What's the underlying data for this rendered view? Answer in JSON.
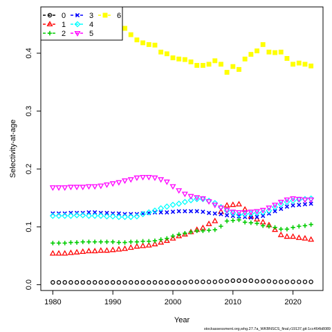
{
  "chart_data": {
    "type": "scatter",
    "xlabel": "Year",
    "ylabel": "Selectivity-at-age",
    "xlim": [
      1978,
      2025
    ],
    "ylim": [
      -0.01,
      0.48
    ],
    "x_ticks": [
      1980,
      1990,
      2000,
      2010,
      2020
    ],
    "y_ticks": [
      0.0,
      0.1,
      0.2,
      0.3,
      0.4
    ],
    "y_tick_labels": [
      "0.0",
      "0.1",
      "0.2",
      "0.3",
      "0.4"
    ],
    "legend_position": "top-left",
    "x": [
      1980,
      1981,
      1982,
      1983,
      1984,
      1985,
      1986,
      1987,
      1988,
      1989,
      1990,
      1991,
      1992,
      1993,
      1994,
      1995,
      1996,
      1997,
      1998,
      1999,
      2000,
      2001,
      2002,
      2003,
      2004,
      2005,
      2006,
      2007,
      2008,
      2009,
      2010,
      2011,
      2012,
      2013,
      2014,
      2015,
      2016,
      2017,
      2018,
      2019,
      2020,
      2021,
      2022,
      2023
    ],
    "series": [
      {
        "name": "0",
        "color": "#000000",
        "marker": "circle",
        "values": [
          0.004,
          0.004,
          0.004,
          0.004,
          0.004,
          0.004,
          0.004,
          0.004,
          0.004,
          0.004,
          0.004,
          0.004,
          0.004,
          0.004,
          0.004,
          0.004,
          0.004,
          0.004,
          0.004,
          0.004,
          0.004,
          0.004,
          0.004,
          0.005,
          0.005,
          0.005,
          0.005,
          0.005,
          0.006,
          0.006,
          0.007,
          0.007,
          0.007,
          0.007,
          0.006,
          0.006,
          0.006,
          0.005,
          0.005,
          0.005,
          0.005,
          0.005,
          0.005,
          0.005
        ]
      },
      {
        "name": "1",
        "color": "#FF0000",
        "marker": "triangle",
        "values": [
          0.054,
          0.054,
          0.054,
          0.055,
          0.056,
          0.057,
          0.058,
          0.058,
          0.059,
          0.059,
          0.06,
          0.061,
          0.062,
          0.064,
          0.066,
          0.067,
          0.068,
          0.07,
          0.073,
          0.076,
          0.08,
          0.084,
          0.087,
          0.091,
          0.095,
          0.098,
          0.105,
          0.11,
          0.126,
          0.137,
          0.138,
          0.139,
          0.13,
          0.118,
          0.113,
          0.108,
          0.103,
          0.095,
          0.086,
          0.083,
          0.083,
          0.081,
          0.08,
          0.078
        ]
      },
      {
        "name": "2",
        "color": "#00CC00",
        "marker": "plus",
        "values": [
          0.072,
          0.072,
          0.072,
          0.073,
          0.073,
          0.074,
          0.074,
          0.074,
          0.074,
          0.074,
          0.074,
          0.073,
          0.073,
          0.074,
          0.074,
          0.075,
          0.075,
          0.076,
          0.078,
          0.08,
          0.084,
          0.087,
          0.089,
          0.091,
          0.093,
          0.093,
          0.094,
          0.095,
          0.101,
          0.11,
          0.111,
          0.112,
          0.108,
          0.107,
          0.106,
          0.102,
          0.101,
          0.099,
          0.096,
          0.096,
          0.099,
          0.101,
          0.102,
          0.104
        ]
      },
      {
        "name": "3",
        "color": "#0000FF",
        "marker": "x",
        "values": [
          0.123,
          0.123,
          0.123,
          0.124,
          0.124,
          0.124,
          0.125,
          0.125,
          0.124,
          0.124,
          0.123,
          0.123,
          0.122,
          0.122,
          0.122,
          0.123,
          0.124,
          0.125,
          0.125,
          0.125,
          0.126,
          0.127,
          0.127,
          0.127,
          0.127,
          0.126,
          0.124,
          0.123,
          0.122,
          0.12,
          0.119,
          0.118,
          0.117,
          0.116,
          0.117,
          0.119,
          0.123,
          0.127,
          0.131,
          0.135,
          0.137,
          0.138,
          0.139,
          0.14
        ]
      },
      {
        "name": "4",
        "color": "#00FFFF",
        "marker": "diamond",
        "values": [
          0.119,
          0.119,
          0.119,
          0.119,
          0.12,
          0.12,
          0.119,
          0.119,
          0.119,
          0.118,
          0.118,
          0.117,
          0.117,
          0.117,
          0.118,
          0.122,
          0.125,
          0.128,
          0.132,
          0.135,
          0.138,
          0.14,
          0.143,
          0.146,
          0.148,
          0.148,
          0.145,
          0.141,
          0.134,
          0.128,
          0.124,
          0.121,
          0.122,
          0.123,
          0.124,
          0.125,
          0.128,
          0.134,
          0.139,
          0.143,
          0.145,
          0.147,
          0.148,
          0.149
        ]
      },
      {
        "name": "5",
        "color": "#FF00FF",
        "marker": "triangle-down",
        "values": [
          0.168,
          0.168,
          0.168,
          0.169,
          0.169,
          0.169,
          0.17,
          0.17,
          0.171,
          0.173,
          0.175,
          0.177,
          0.18,
          0.182,
          0.185,
          0.186,
          0.186,
          0.185,
          0.182,
          0.178,
          0.17,
          0.163,
          0.157,
          0.153,
          0.151,
          0.149,
          0.144,
          0.138,
          0.133,
          0.129,
          0.126,
          0.125,
          0.125,
          0.126,
          0.127,
          0.129,
          0.133,
          0.138,
          0.143,
          0.147,
          0.149,
          0.148,
          0.147,
          0.147
        ]
      },
      {
        "name": "6",
        "color": "#FFFF00",
        "marker": "square",
        "values": [
          0.445,
          0.444,
          0.444,
          0.444,
          0.444,
          0.444,
          0.444,
          0.444,
          0.444,
          0.444,
          0.444,
          0.444,
          0.443,
          0.432,
          0.423,
          0.418,
          0.415,
          0.414,
          0.402,
          0.399,
          0.392,
          0.39,
          0.389,
          0.385,
          0.379,
          0.379,
          0.381,
          0.387,
          0.381,
          0.367,
          0.377,
          0.372,
          0.39,
          0.398,
          0.404,
          0.415,
          0.402,
          0.401,
          0.402,
          0.391,
          0.381,
          0.383,
          0.381,
          0.378
        ]
      }
    ]
  },
  "footer_text": "stockassessment.org,whg.27.7a_WKBNSCS_final,r19137,git:1cc464b8089"
}
